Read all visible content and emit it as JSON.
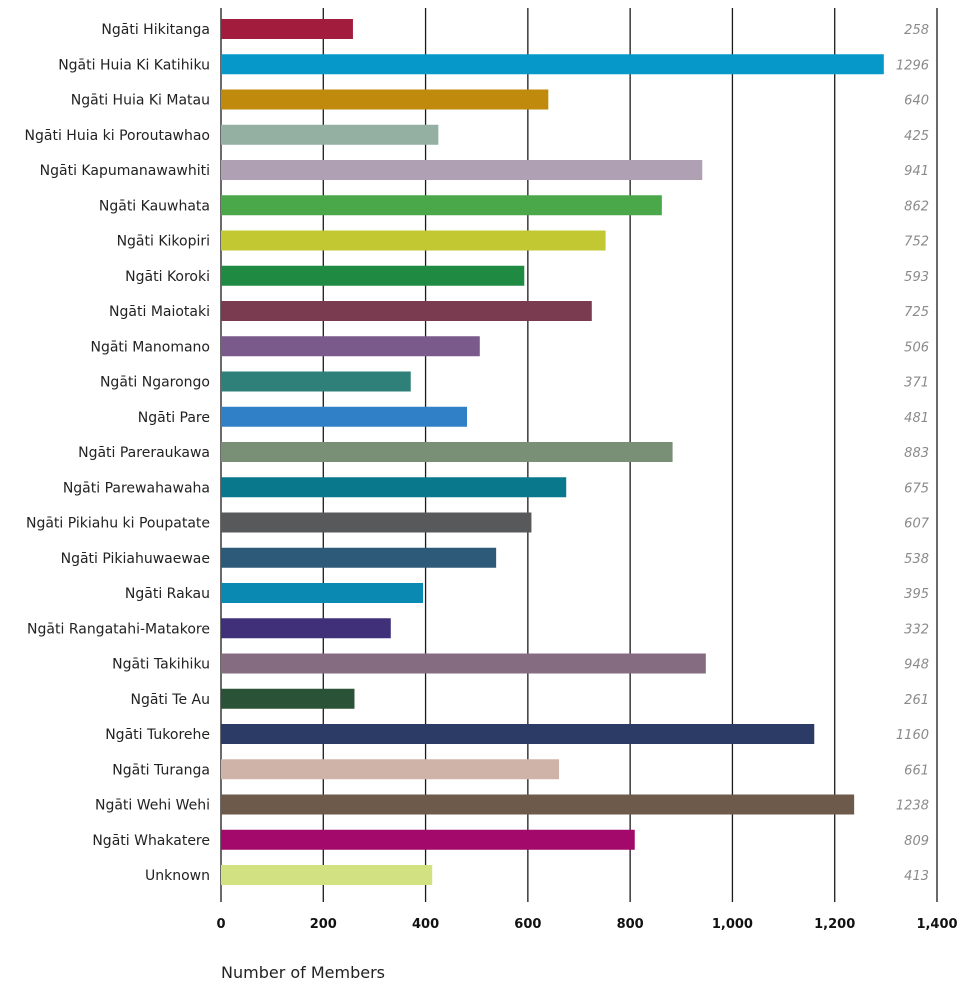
{
  "chart_data": {
    "type": "bar",
    "orientation": "horizontal",
    "title": "",
    "xlabel": "Number of Members",
    "ylabel": "",
    "xlim": [
      0,
      1400
    ],
    "x_ticks": [
      0,
      200,
      400,
      600,
      800,
      1000,
      1200,
      1400
    ],
    "x_tick_labels": [
      "0",
      "200",
      "400",
      "600",
      "800",
      "1,000",
      "1,200",
      "1,400"
    ],
    "grid": "vertical",
    "categories": [
      "Ngāti Hikitanga",
      "Ngāti Huia Ki Katihiku",
      "Ngāti Huia Ki Matau",
      "Ngāti Huia ki Poroutawhao",
      "Ngāti Kapumanawawhiti",
      "Ngāti Kauwhata",
      "Ngāti Kikopiri",
      "Ngāti Koroki",
      "Ngāti Maiotaki",
      "Ngāti Manomano",
      "Ngāti Ngarongo",
      "Ngāti Pare",
      "Ngāti Pareraukawa",
      "Ngāti Parewahawaha",
      "Ngāti Pikiahu ki Poupatate",
      "Ngāti Pikiahuwaewae",
      "Ngāti Rakau",
      "Ngāti Rangatahi-Matakore",
      "Ngāti Takihiku",
      "Ngāti Te Au",
      "Ngāti Tukorehe",
      "Ngāti Turanga",
      "Ngāti Wehi Wehi",
      "Ngāti Whakatere",
      "Unknown"
    ],
    "values": [
      258,
      1296,
      640,
      425,
      941,
      862,
      752,
      593,
      725,
      506,
      371,
      481,
      883,
      675,
      607,
      538,
      395,
      332,
      948,
      261,
      1160,
      661,
      1238,
      809,
      413
    ],
    "value_labels": [
      "258",
      "1296",
      "640",
      "425",
      "941",
      "862",
      "752",
      "593",
      "725",
      "506",
      "371",
      "481",
      "883",
      "675",
      "607",
      "538",
      "395",
      "332",
      "948",
      "261",
      "1160",
      "661",
      "1238",
      "809",
      "413"
    ],
    "colors": [
      "#a21d3d",
      "#0598c9",
      "#c08a0c",
      "#93b0a2",
      "#b0a0b3",
      "#4aa84a",
      "#c2c832",
      "#1e8a42",
      "#7a3a50",
      "#7a5a8a",
      "#2e8078",
      "#2f80c6",
      "#7a9076",
      "#0a788c",
      "#58595b",
      "#2e5a7a",
      "#0a8ab2",
      "#40307a",
      "#866c80",
      "#2a5236",
      "#2c3a66",
      "#d0b3a8",
      "#6e5a4a",
      "#a2096a",
      "#d2e283"
    ]
  }
}
